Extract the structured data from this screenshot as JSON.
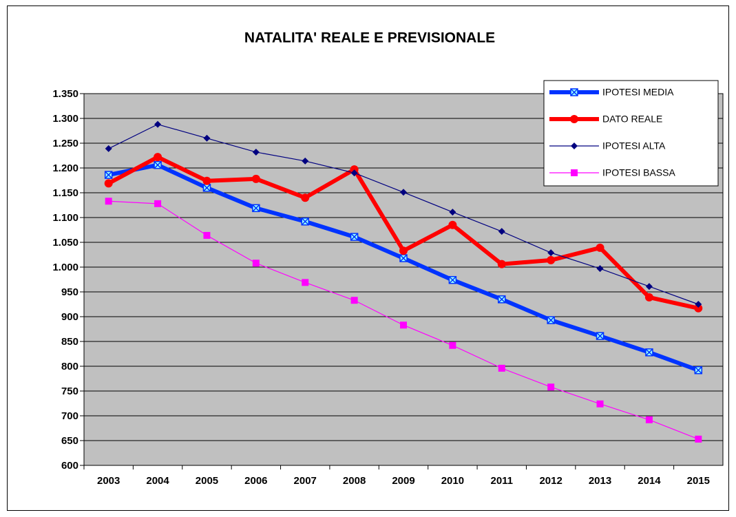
{
  "chart_data": {
    "type": "line",
    "title": "NATALITA' REALE E PREVISIONALE",
    "categories": [
      "2003",
      "2004",
      "2005",
      "2006",
      "2007",
      "2008",
      "2009",
      "2010",
      "2011",
      "2012",
      "2013",
      "2014",
      "2015"
    ],
    "series": [
      {
        "name": "IPOTESI MEDIA",
        "color": "#0033ff",
        "line_width": 6,
        "marker": "x-square",
        "values": [
          1186,
          1206,
          1160,
          1119,
          1092,
          1061,
          1018,
          974,
          935,
          893,
          861,
          828,
          792
        ]
      },
      {
        "name": "DATO REALE",
        "color": "#ff0000",
        "line_width": 6,
        "marker": "circle",
        "values": [
          1169,
          1222,
          1174,
          1178,
          1140,
          1197,
          1033,
          1085,
          1006,
          1014,
          1039,
          939,
          917
        ]
      },
      {
        "name": "IPOTESI ALTA",
        "color": "#000080",
        "line_width": 1.2,
        "marker": "diamond",
        "values": [
          1239,
          1288,
          1260,
          1232,
          1214,
          1190,
          1151,
          1111,
          1072,
          1029,
          997,
          961,
          925
        ]
      },
      {
        "name": "IPOTESI BASSA",
        "color": "#ff00ff",
        "line_width": 1.2,
        "marker": "square",
        "values": [
          1133,
          1128,
          1064,
          1008,
          969,
          933,
          883,
          842,
          796,
          758,
          724,
          692,
          653
        ]
      }
    ],
    "ylim": [
      600,
      1350
    ],
    "yticks": [
      600,
      650,
      700,
      750,
      800,
      850,
      900,
      950,
      {
        "value": 1000,
        "label": "1.000"
      },
      {
        "value": 1050,
        "label": "1.050"
      },
      {
        "value": 1100,
        "label": "1.100"
      },
      {
        "value": 1150,
        "label": "1.150"
      },
      {
        "value": 1200,
        "label": "1.200"
      },
      {
        "value": 1250,
        "label": "1.250"
      },
      {
        "value": 1300,
        "label": "1.300"
      },
      {
        "value": 1350,
        "label": "1.350"
      }
    ],
    "grid": true,
    "legend": "top-right",
    "plot_background": "#c0c0c0"
  }
}
